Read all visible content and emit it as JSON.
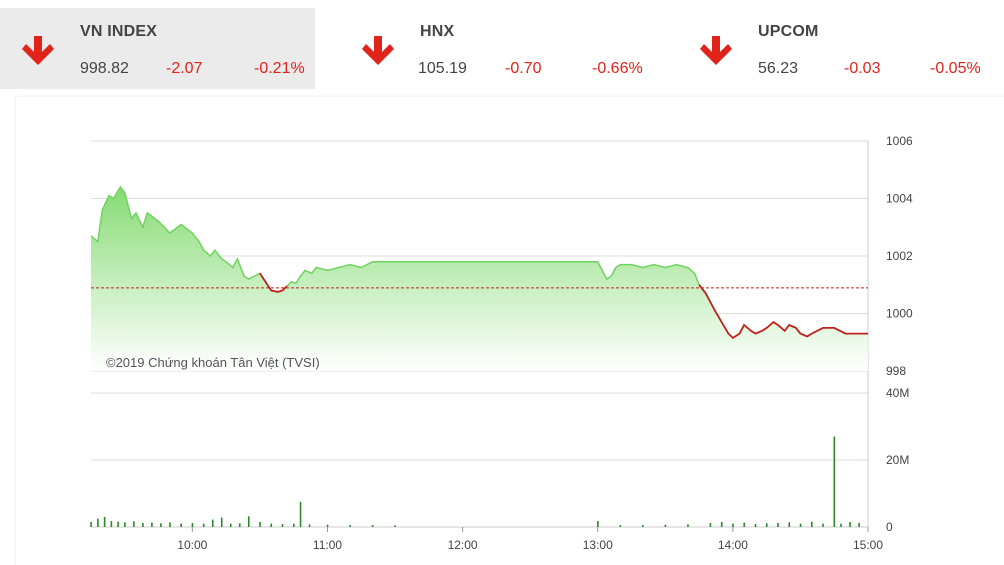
{
  "indices": [
    {
      "name": "VN INDEX",
      "value": "998.82",
      "change": "-2.07",
      "percent": "-0.21%",
      "active": true,
      "direction": "down"
    },
    {
      "name": "HNX",
      "value": "105.19",
      "change": "-0.70",
      "percent": "-0.66%",
      "active": false,
      "direction": "down"
    },
    {
      "name": "UPCOM",
      "value": "56.23",
      "change": "-0.03",
      "percent": "-0.05%",
      "active": false,
      "direction": "down"
    }
  ],
  "colors": {
    "up_area": "#a9e89c",
    "up_line": "#6fd35f",
    "down_line": "#c0201b",
    "reference_line": "#c0201b",
    "volume_bar": "#2a8a2a",
    "arrow_down": "#e0231b"
  },
  "chart_data": {
    "type": "area",
    "watermark": "©2019 Chứng khoán Tân Việt (TVSI)",
    "reference": 1000.89,
    "ylim": [
      998,
      1006
    ],
    "yticks": [
      "1006",
      "1004",
      "1002",
      "1000",
      "998"
    ],
    "xlim": [
      "09:15",
      "15:00"
    ],
    "xticks": [
      "10:00",
      "11:00",
      "12:00",
      "13:00",
      "14:00",
      "15:00"
    ],
    "price_series": {
      "x": [
        "09:15",
        "09:18",
        "09:20",
        "09:23",
        "09:25",
        "09:28",
        "09:30",
        "09:33",
        "09:35",
        "09:38",
        "09:40",
        "09:45",
        "09:50",
        "09:55",
        "10:00",
        "10:03",
        "10:05",
        "10:08",
        "10:10",
        "10:13",
        "10:15",
        "10:18",
        "10:20",
        "10:23",
        "10:25",
        "10:30",
        "10:35",
        "10:38",
        "10:40",
        "10:42",
        "10:44",
        "10:46",
        "10:48",
        "10:50",
        "10:53",
        "10:55",
        "11:00",
        "11:05",
        "11:10",
        "11:15",
        "11:20",
        "11:25",
        "11:30",
        "12:00",
        "13:00",
        "13:02",
        "13:04",
        "13:06",
        "13:08",
        "13:10",
        "13:15",
        "13:20",
        "13:25",
        "13:30",
        "13:35",
        "13:40",
        "13:43",
        "13:45",
        "13:48",
        "13:50",
        "13:52",
        "13:55",
        "13:58",
        "14:00",
        "14:03",
        "14:05",
        "14:08",
        "14:10",
        "14:13",
        "14:15",
        "14:18",
        "14:20",
        "14:23",
        "14:25",
        "14:28",
        "14:30",
        "14:33",
        "14:35",
        "14:40",
        "14:45",
        "14:50",
        "14:55",
        "15:00"
      ],
      "y": [
        1002.7,
        1002.5,
        1003.6,
        1004.1,
        1004.0,
        1004.4,
        1004.2,
        1003.3,
        1003.5,
        1003.0,
        1003.5,
        1003.2,
        1002.8,
        1003.1,
        1002.8,
        1002.5,
        1002.2,
        1002.0,
        1002.2,
        1001.9,
        1001.8,
        1001.6,
        1001.9,
        1001.3,
        1001.2,
        1001.4,
        1000.8,
        1000.75,
        1000.8,
        1000.95,
        1001.1,
        1001.05,
        1001.3,
        1001.5,
        1001.4,
        1001.6,
        1001.5,
        1001.6,
        1001.7,
        1001.6,
        1001.8,
        1001.8,
        1001.8,
        1001.8,
        1001.8,
        1001.5,
        1001.2,
        1001.3,
        1001.6,
        1001.7,
        1001.7,
        1001.6,
        1001.7,
        1001.6,
        1001.7,
        1001.6,
        1001.4,
        1001.0,
        1000.7,
        1000.4,
        1000.1,
        999.7,
        999.3,
        999.15,
        999.3,
        999.6,
        999.4,
        999.3,
        999.4,
        999.5,
        999.7,
        999.6,
        999.4,
        999.6,
        999.5,
        999.3,
        999.2,
        999.3,
        999.5,
        999.5,
        999.3,
        999.3,
        999.3
      ]
    },
    "volume": {
      "ylim": [
        0,
        40
      ],
      "unit": "M",
      "yticks": [
        "40M",
        "20M",
        "0"
      ],
      "bars": [
        {
          "x": "09:15",
          "v": 1.5
        },
        {
          "x": "09:18",
          "v": 2.5
        },
        {
          "x": "09:21",
          "v": 3.0
        },
        {
          "x": "09:24",
          "v": 1.8
        },
        {
          "x": "09:27",
          "v": 1.6
        },
        {
          "x": "09:30",
          "v": 1.4
        },
        {
          "x": "09:34",
          "v": 1.7
        },
        {
          "x": "09:38",
          "v": 1.2
        },
        {
          "x": "09:42",
          "v": 1.3
        },
        {
          "x": "09:46",
          "v": 1.1
        },
        {
          "x": "09:50",
          "v": 1.4
        },
        {
          "x": "09:55",
          "v": 1.0
        },
        {
          "x": "10:00",
          "v": 1.2
        },
        {
          "x": "10:05",
          "v": 1.0
        },
        {
          "x": "10:09",
          "v": 2.2
        },
        {
          "x": "10:13",
          "v": 2.8
        },
        {
          "x": "10:17",
          "v": 1.0
        },
        {
          "x": "10:21",
          "v": 1.1
        },
        {
          "x": "10:25",
          "v": 3.2
        },
        {
          "x": "10:30",
          "v": 1.5
        },
        {
          "x": "10:35",
          "v": 1.0
        },
        {
          "x": "10:40",
          "v": 0.9
        },
        {
          "x": "10:45",
          "v": 1.0
        },
        {
          "x": "10:48",
          "v": 7.5
        },
        {
          "x": "10:52",
          "v": 0.8
        },
        {
          "x": "11:00",
          "v": 0.7
        },
        {
          "x": "11:10",
          "v": 0.6
        },
        {
          "x": "11:20",
          "v": 0.6
        },
        {
          "x": "11:30",
          "v": 0.5
        },
        {
          "x": "13:00",
          "v": 1.8
        },
        {
          "x": "13:10",
          "v": 0.6
        },
        {
          "x": "13:20",
          "v": 0.6
        },
        {
          "x": "13:30",
          "v": 0.7
        },
        {
          "x": "13:40",
          "v": 0.8
        },
        {
          "x": "13:50",
          "v": 1.2
        },
        {
          "x": "13:55",
          "v": 1.5
        },
        {
          "x": "14:00",
          "v": 1.0
        },
        {
          "x": "14:05",
          "v": 1.3
        },
        {
          "x": "14:10",
          "v": 0.9
        },
        {
          "x": "14:15",
          "v": 1.1
        },
        {
          "x": "14:20",
          "v": 1.2
        },
        {
          "x": "14:25",
          "v": 1.4
        },
        {
          "x": "14:30",
          "v": 1.0
        },
        {
          "x": "14:35",
          "v": 1.6
        },
        {
          "x": "14:40",
          "v": 1.0
        },
        {
          "x": "14:45",
          "v": 27.0
        },
        {
          "x": "14:48",
          "v": 1.0
        },
        {
          "x": "14:52",
          "v": 1.5
        },
        {
          "x": "14:56",
          "v": 1.2
        }
      ]
    }
  }
}
